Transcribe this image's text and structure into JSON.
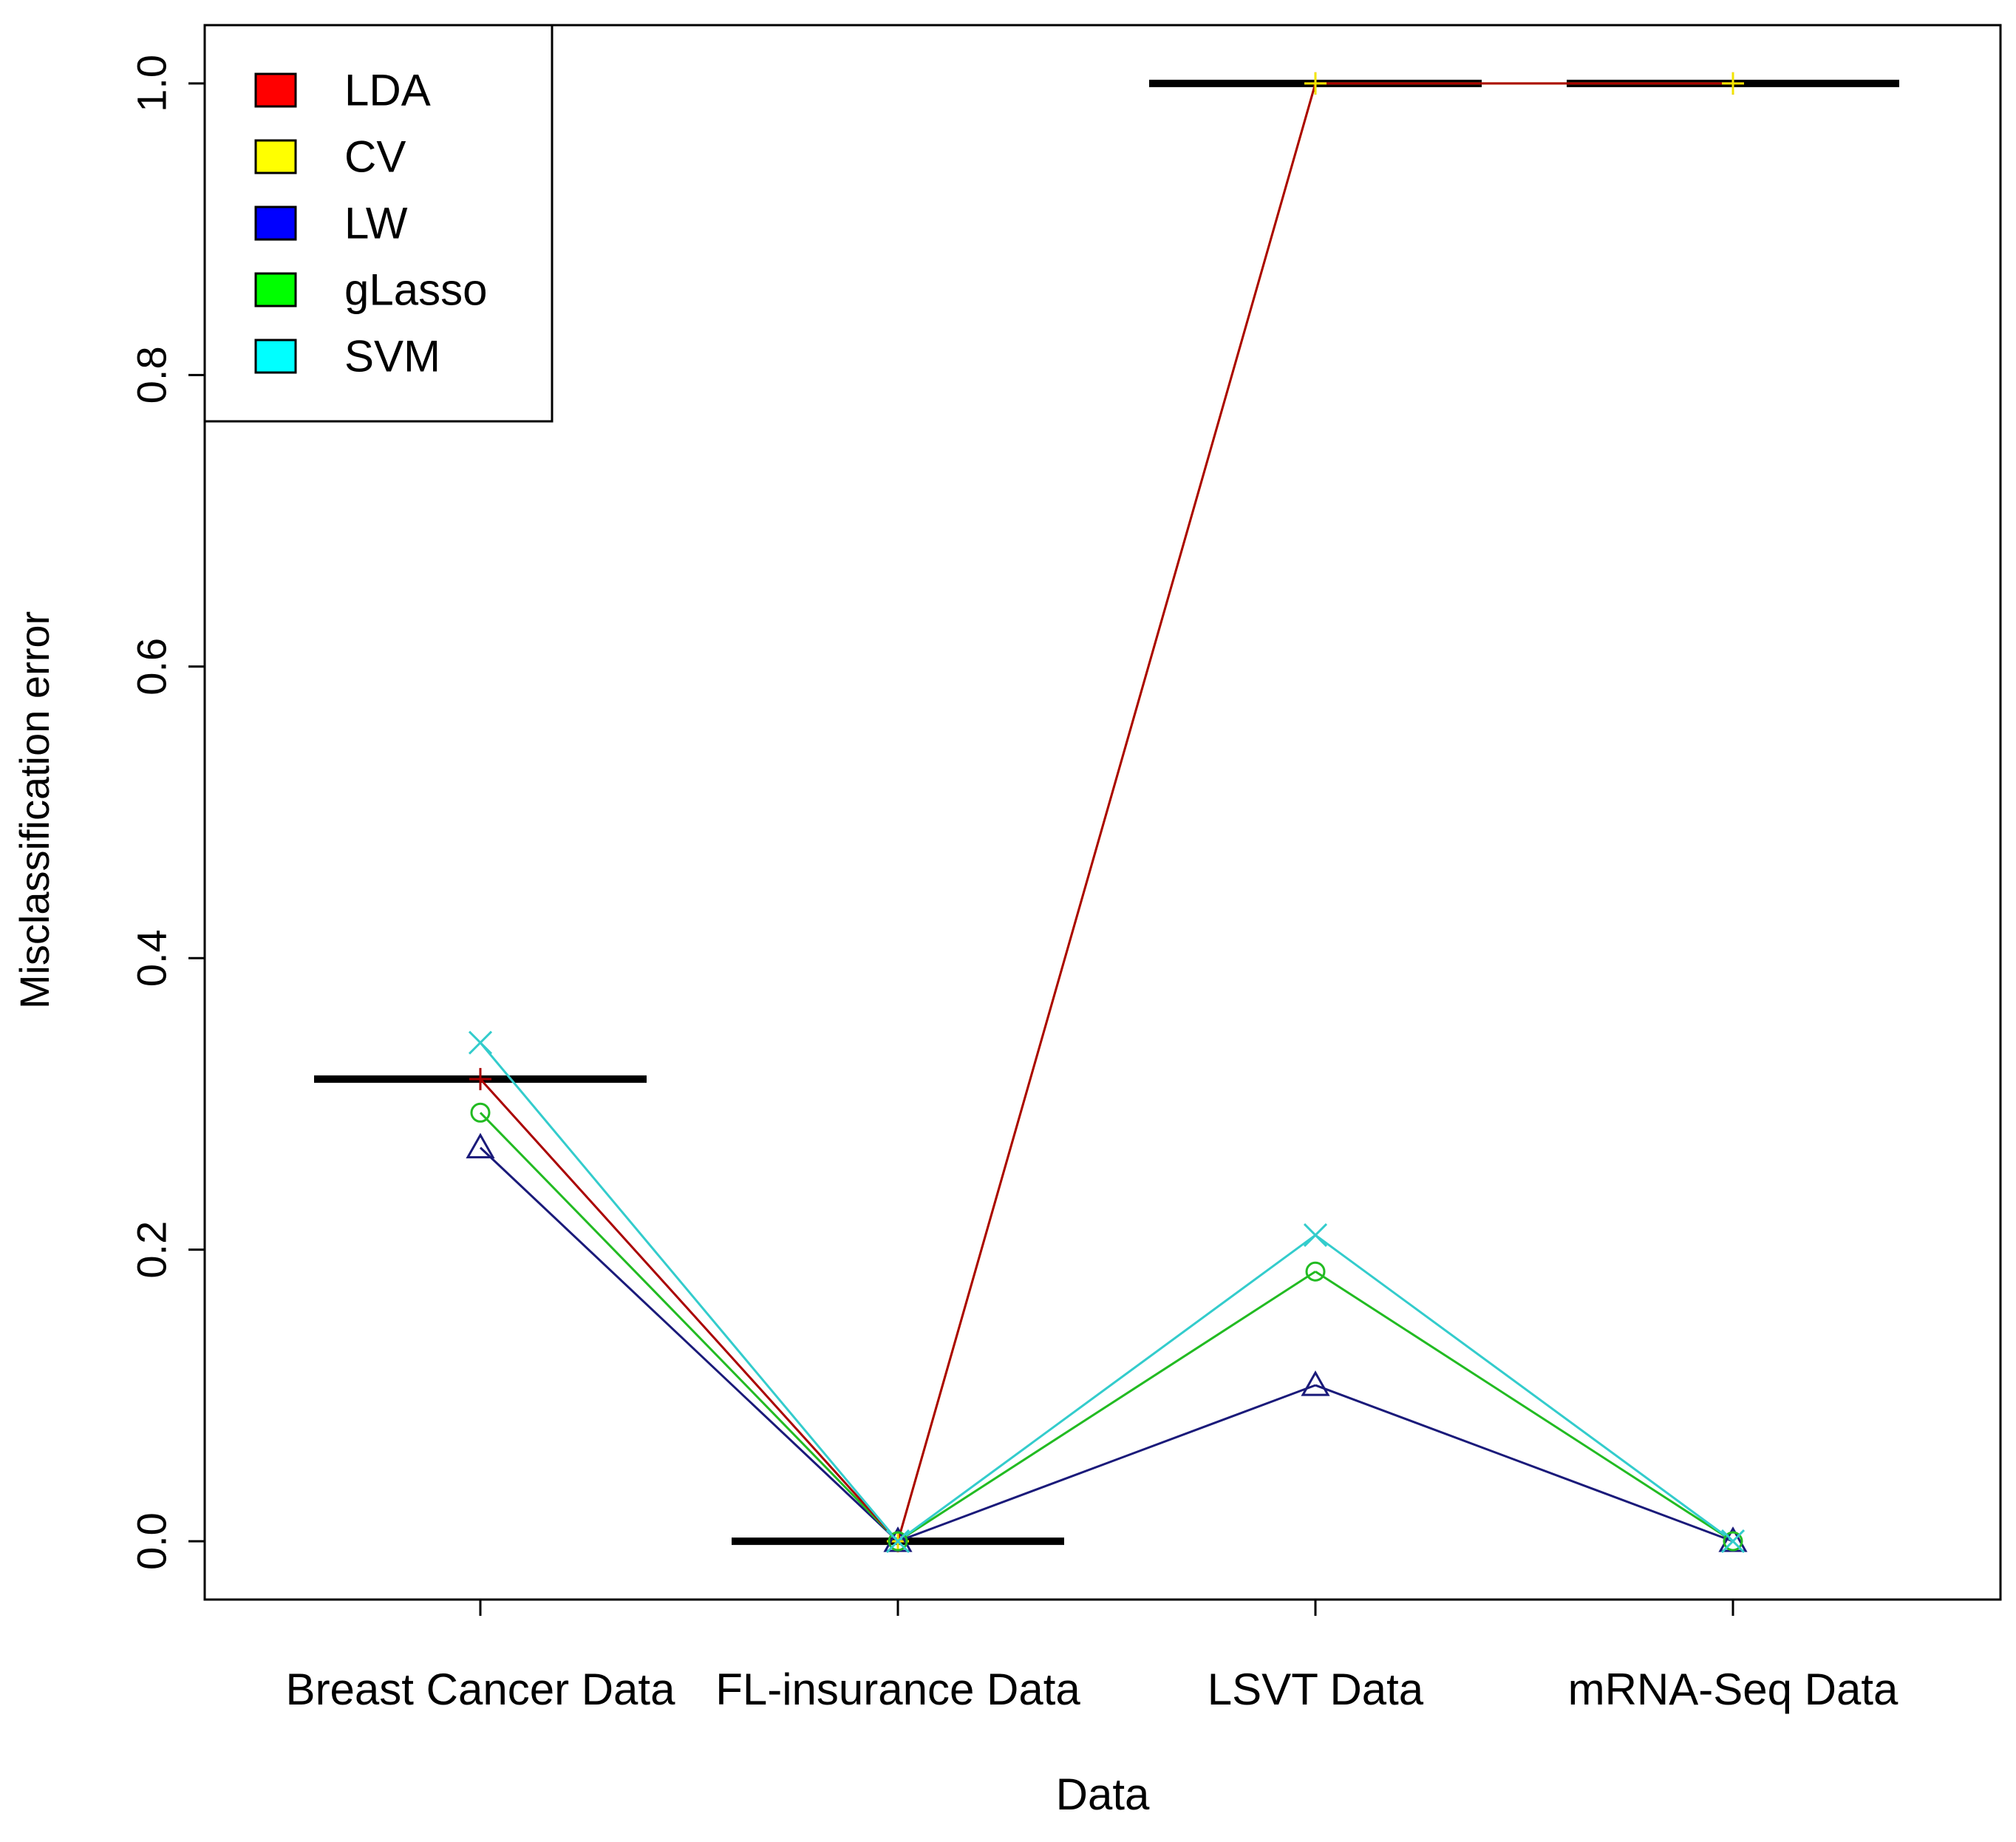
{
  "chart_data": {
    "type": "line",
    "title": "",
    "xlabel": "Data",
    "ylabel": "Misclassification error",
    "categories": [
      "Breast Cancer Data",
      "FL-insurance Data",
      "LSVT Data",
      "mRNA-Seq Data"
    ],
    "ylim": [
      -0.04,
      1.04
    ],
    "yticks": [
      "0.0",
      "0.2",
      "0.4",
      "0.6",
      "0.8",
      "1.0"
    ],
    "ytick_values": [
      0.0,
      0.2,
      0.4,
      0.6,
      0.8,
      1.0
    ],
    "grid": false,
    "legend_position": "top-left",
    "reference_levels": [
      0.317,
      0.0,
      1.0,
      1.0
    ],
    "series": [
      {
        "name": "LDA",
        "color": "#ff0000",
        "line_color": "#aa0000",
        "marker": "plus",
        "values": [
          0.317,
          0.0,
          1.0,
          1.0
        ]
      },
      {
        "name": "CV",
        "color": "#ffff00",
        "line_color": "#f2e400",
        "marker": "plus",
        "values": [
          null,
          0.0,
          1.0,
          1.0
        ]
      },
      {
        "name": "LW",
        "color": "#0000ff",
        "line_color": "#1a1a7a",
        "marker": "triangle",
        "values": [
          0.27,
          0.0,
          0.107,
          0.0
        ]
      },
      {
        "name": "gLasso",
        "color": "#00ff00",
        "line_color": "#22bb22",
        "marker": "circle",
        "values": [
          0.294,
          0.0,
          0.185,
          0.0
        ]
      },
      {
        "name": "SVM",
        "color": "#00ffff",
        "line_color": "#33cccc",
        "marker": "x",
        "values": [
          0.342,
          0.0,
          0.21,
          0.0
        ]
      }
    ]
  }
}
